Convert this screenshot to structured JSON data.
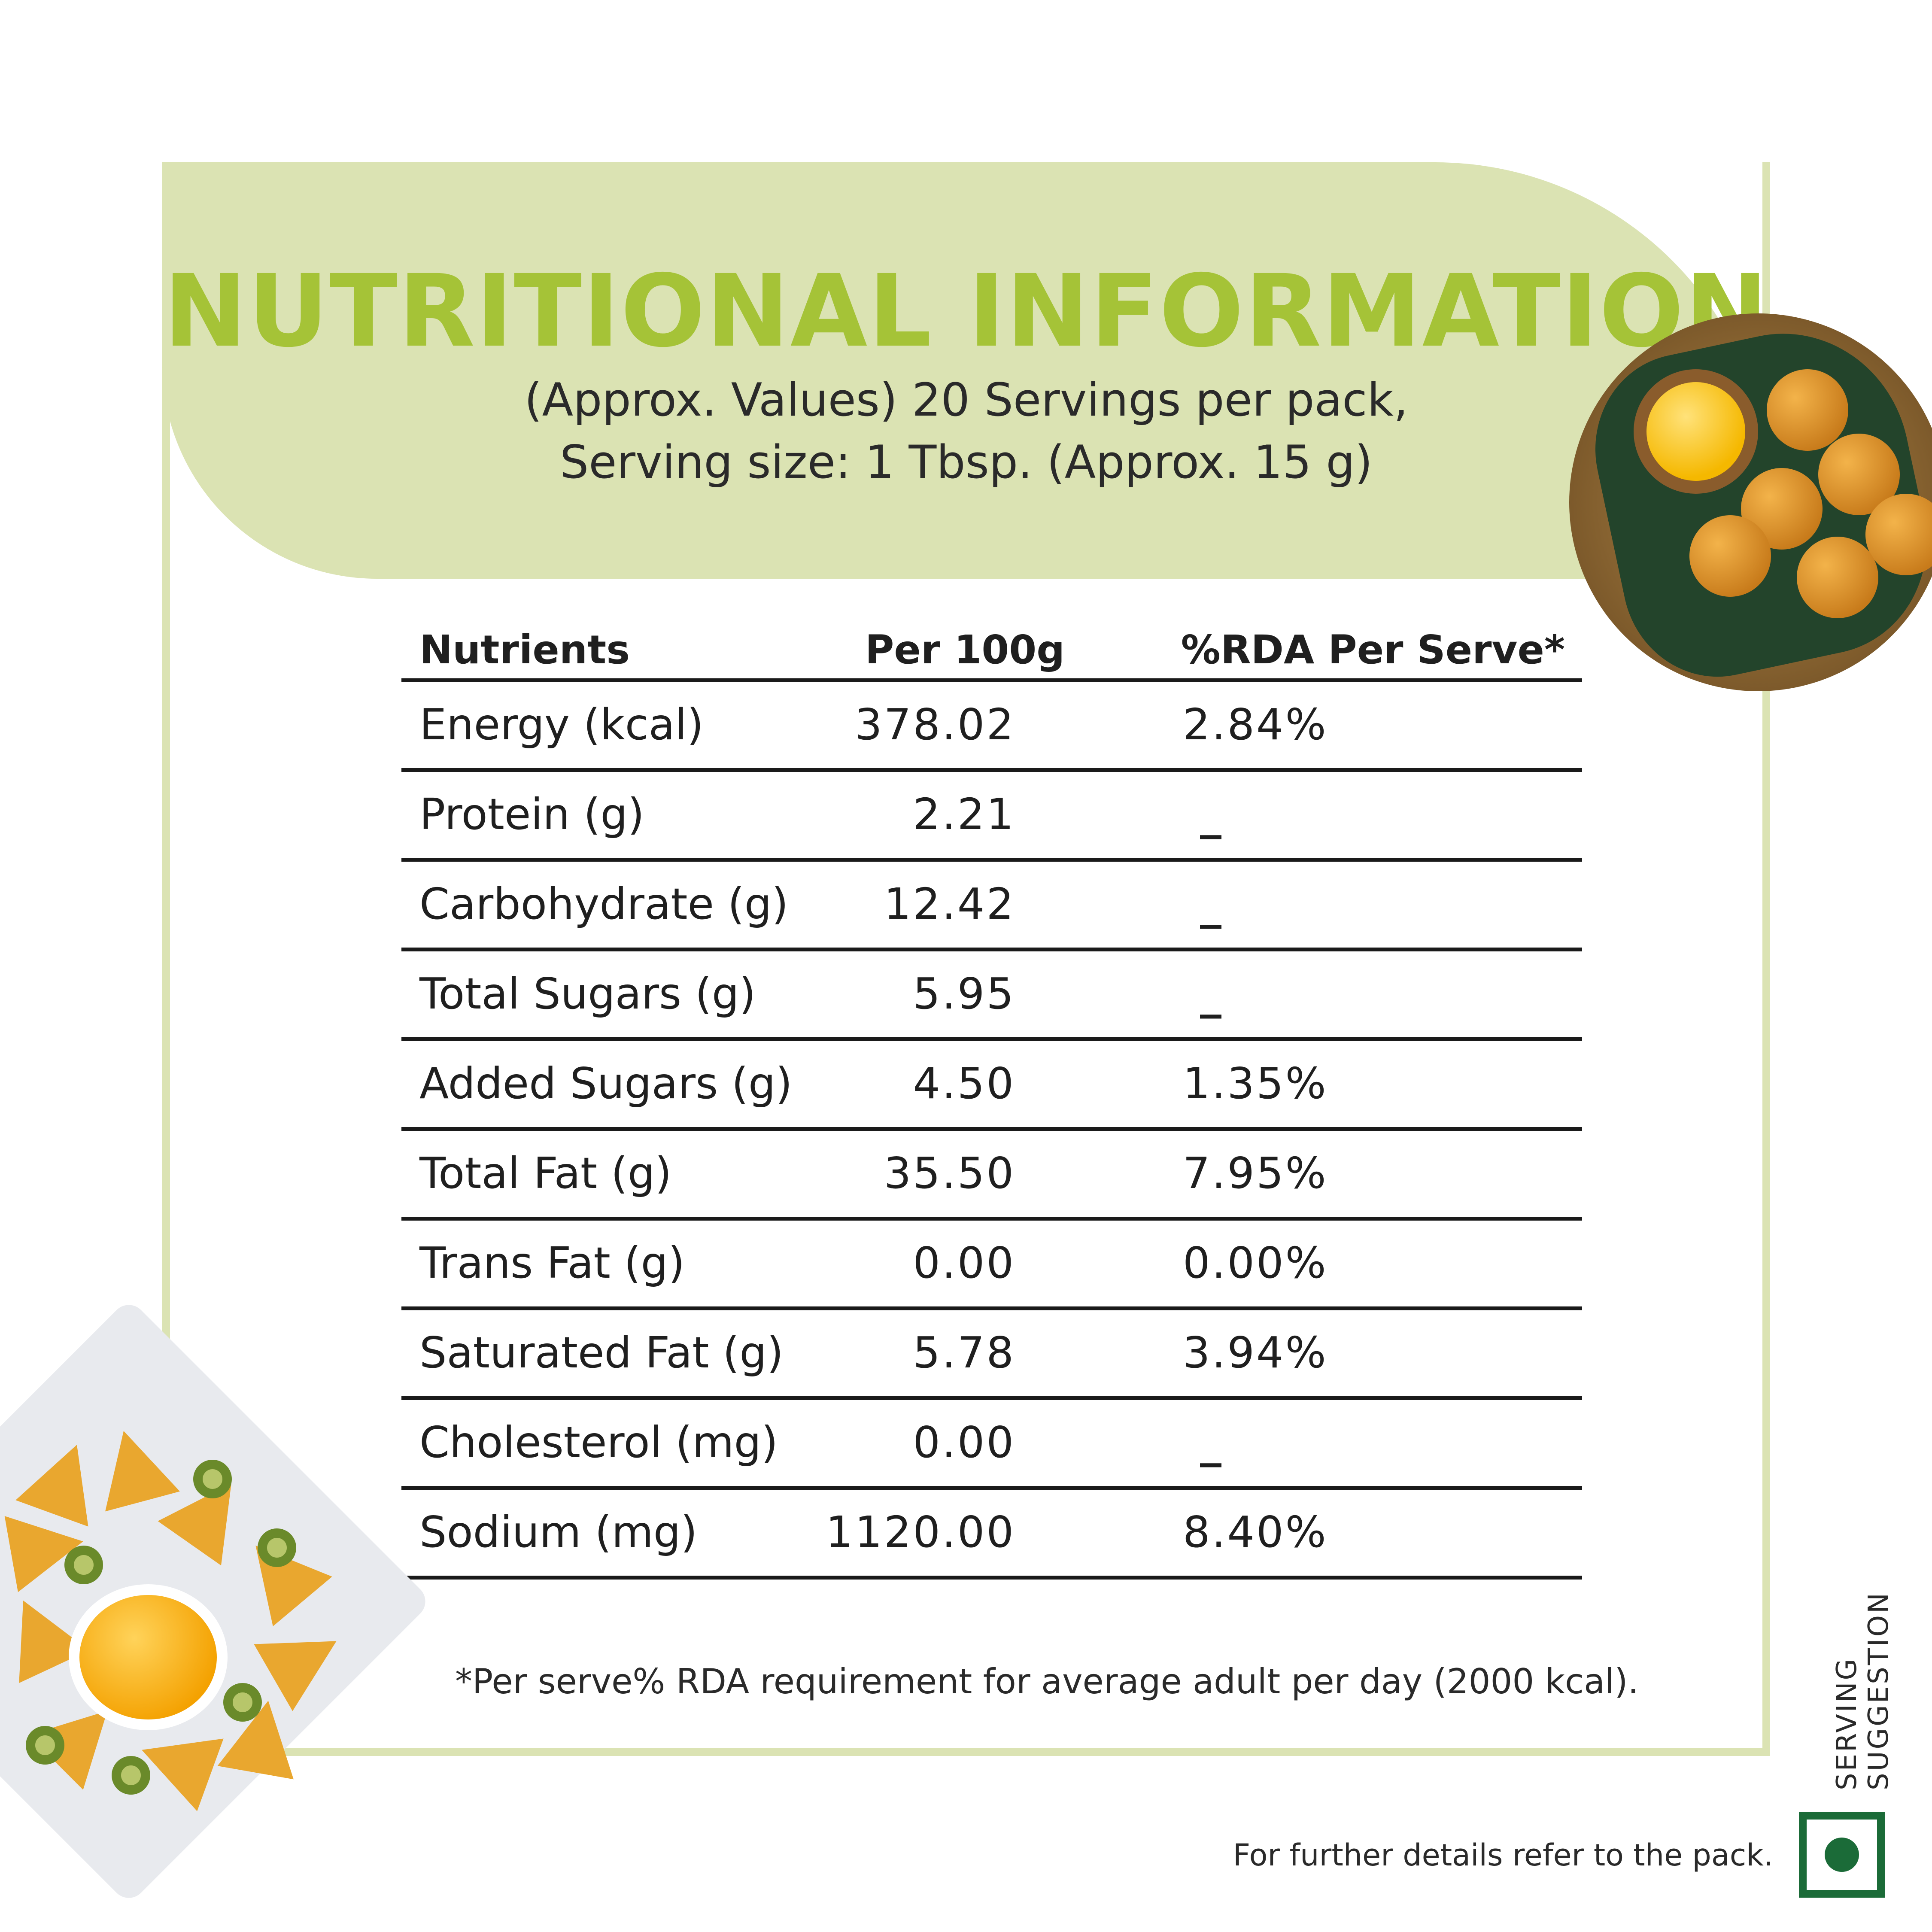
{
  "title": "NUTRITIONAL INFORMATION",
  "subtitle_line1": "(Approx. Values) 20 Servings per pack,",
  "subtitle_line2": "Serving size: 1 Tbsp. (Approx. 15 g)",
  "table": {
    "headers": [
      "Nutrients",
      "Per 100g",
      "%RDA Per Serve*"
    ],
    "rows": [
      {
        "nutrient": "Energy (kcal)",
        "per100g": "378.02",
        "rda": "2.84%"
      },
      {
        "nutrient": "Protein (g)",
        "per100g": "2.21",
        "rda": "_"
      },
      {
        "nutrient": "Carbohydrate (g)",
        "per100g": "12.42",
        "rda": "_"
      },
      {
        "nutrient": "Total Sugars (g)",
        "per100g": "5.95",
        "rda": "_"
      },
      {
        "nutrient": "Added Sugars (g)",
        "per100g": "4.50",
        "rda": "1.35%"
      },
      {
        "nutrient": "Total Fat (g)",
        "per100g": "35.50",
        "rda": "7.95%"
      },
      {
        "nutrient": "Trans Fat (g)",
        "per100g": "0.00",
        "rda": "0.00%"
      },
      {
        "nutrient": "Saturated Fat (g)",
        "per100g": "5.78",
        "rda": "3.94%"
      },
      {
        "nutrient": "Cholesterol (mg)",
        "per100g": "0.00",
        "rda": "_"
      },
      {
        "nutrient": "Sodium (mg)",
        "per100g": "1120.00",
        "rda": "8.40%"
      }
    ]
  },
  "footnote": "*Per serve% RDA requirement for average adult per day (2000 kcal).",
  "further_details": "For further details refer to the pack.",
  "serving_suggestion": "SERVING SUGGESTION",
  "colors": {
    "accent": "#a5c337",
    "panel": "#dbe3b3",
    "veg": "#1b6b38"
  },
  "icons": {
    "veg_mark": "veg-symbol-icon"
  }
}
